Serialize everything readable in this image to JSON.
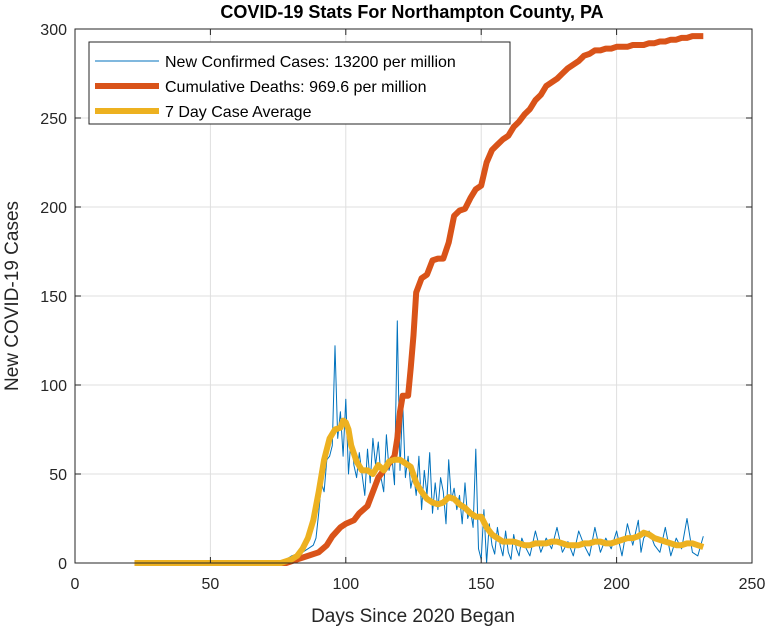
{
  "chart_data": {
    "type": "line",
    "title": "COVID-19 Stats For Northampton County, PA",
    "xlabel": "Days Since 2020 Began",
    "ylabel": "New COVID-19 Cases",
    "xlim": [
      0,
      250
    ],
    "ylim": [
      0,
      300
    ],
    "xticks": [
      0,
      50,
      100,
      150,
      200,
      250
    ],
    "yticks": [
      0,
      50,
      100,
      150,
      200,
      250,
      300
    ],
    "grid": true,
    "legend_position": "top-left",
    "series": [
      {
        "name": "New Confirmed Cases: 13200 per million",
        "color": "#0072BD",
        "line_width": "thin",
        "x": [
          22,
          30,
          40,
          50,
          60,
          70,
          76,
          78,
          80,
          82,
          84,
          86,
          88,
          89,
          90,
          91,
          92,
          93,
          94,
          95,
          96,
          97,
          98,
          99,
          100,
          101,
          102,
          103,
          104,
          105,
          106,
          107,
          108,
          109,
          110,
          111,
          112,
          113,
          114,
          115,
          116,
          117,
          118,
          119,
          120,
          121,
          122,
          123,
          124,
          125,
          126,
          127,
          128,
          129,
          130,
          131,
          132,
          133,
          134,
          135,
          136,
          137,
          138,
          139,
          140,
          141,
          142,
          143,
          144,
          145,
          146,
          147,
          148,
          149,
          150,
          151,
          152,
          153,
          154,
          155,
          156,
          157,
          158,
          159,
          160,
          161,
          162,
          163,
          164,
          165,
          166,
          168,
          170,
          172,
          174,
          176,
          178,
          180,
          182,
          184,
          186,
          188,
          190,
          192,
          194,
          196,
          198,
          200,
          202,
          204,
          206,
          208,
          209,
          210,
          212,
          214,
          216,
          218,
          220,
          222,
          224,
          226,
          228,
          230,
          232
        ],
        "values": [
          0,
          0,
          0,
          0,
          0,
          0,
          0,
          2,
          4,
          5,
          6,
          8,
          10,
          14,
          28,
          45,
          40,
          58,
          60,
          66,
          122,
          70,
          85,
          60,
          92,
          50,
          72,
          55,
          48,
          62,
          50,
          38,
          64,
          45,
          70,
          55,
          68,
          48,
          40,
          72,
          52,
          60,
          44,
          136,
          52,
          90,
          48,
          60,
          42,
          50,
          38,
          60,
          30,
          52,
          38,
          62,
          28,
          45,
          30,
          48,
          40,
          22,
          58,
          35,
          42,
          30,
          38,
          22,
          45,
          25,
          30,
          20,
          64,
          8,
          2,
          30,
          0,
          22,
          10,
          5,
          20,
          10,
          4,
          18,
          6,
          2,
          16,
          8,
          4,
          14,
          10,
          4,
          18,
          6,
          14,
          8,
          20,
          6,
          12,
          4,
          18,
          10,
          4,
          20,
          6,
          14,
          8,
          18,
          4,
          22,
          10,
          24,
          6,
          14,
          18,
          10,
          6,
          20,
          4,
          14,
          8,
          25,
          6,
          4,
          15
        ]
      },
      {
        "name": "Cumulative Deaths: 969.6 per million",
        "color": "#D95319",
        "line_width": "thick",
        "x": [
          22,
          40,
          60,
          78,
          82,
          86,
          90,
          93,
          95,
          98,
          100,
          103,
          105,
          108,
          110,
          112,
          114,
          116,
          118,
          119,
          120,
          121,
          122,
          123,
          124,
          125,
          126,
          127,
          128,
          130,
          132,
          134,
          136,
          138,
          140,
          142,
          144,
          146,
          148,
          150,
          152,
          154,
          156,
          158,
          160,
          162,
          164,
          166,
          168,
          170,
          172,
          174,
          176,
          178,
          180,
          182,
          184,
          186,
          188,
          190,
          192,
          194,
          196,
          198,
          200,
          202,
          204,
          206,
          208,
          210,
          212,
          214,
          216,
          218,
          220,
          222,
          224,
          226,
          228,
          230,
          232
        ],
        "values": [
          0,
          0,
          0,
          0,
          2,
          4,
          6,
          10,
          15,
          20,
          22,
          24,
          28,
          32,
          40,
          48,
          52,
          56,
          60,
          70,
          85,
          94,
          94,
          94,
          110,
          128,
          152,
          156,
          160,
          162,
          170,
          171,
          171,
          180,
          195,
          198,
          199,
          205,
          210,
          212,
          225,
          232,
          235,
          238,
          240,
          245,
          248,
          252,
          255,
          260,
          263,
          268,
          270,
          272,
          275,
          278,
          280,
          282,
          285,
          286,
          288,
          288,
          289,
          289,
          290,
          290,
          290,
          291,
          291,
          291,
          292,
          292,
          293,
          293,
          294,
          294,
          295,
          295,
          296,
          296,
          296
        ]
      },
      {
        "name": "7 Day Case Average",
        "color": "#EDB120",
        "line_width": "thick",
        "x": [
          22,
          40,
          60,
          76,
          78,
          80,
          82,
          84,
          86,
          88,
          90,
          92,
          94,
          96,
          98,
          99,
          100,
          101,
          102,
          104,
          106,
          108,
          110,
          112,
          114,
          116,
          118,
          120,
          122,
          124,
          126,
          128,
          130,
          132,
          134,
          136,
          138,
          140,
          142,
          144,
          146,
          148,
          150,
          152,
          154,
          156,
          158,
          160,
          162,
          164,
          166,
          168,
          170,
          172,
          174,
          176,
          178,
          180,
          182,
          184,
          186,
          188,
          190,
          192,
          194,
          196,
          198,
          200,
          202,
          204,
          206,
          208,
          210,
          212,
          214,
          216,
          218,
          220,
          222,
          224,
          226,
          228,
          230,
          232
        ],
        "values": [
          0,
          0,
          0,
          0,
          1,
          2,
          4,
          8,
          14,
          24,
          40,
          58,
          70,
          75,
          76,
          80,
          79,
          75,
          66,
          57,
          52,
          52,
          50,
          55,
          52,
          57,
          58,
          58,
          56,
          54,
          45,
          40,
          36,
          34,
          33,
          34,
          37,
          36,
          33,
          31,
          28,
          26,
          26,
          20,
          16,
          14,
          12,
          12,
          12,
          11,
          10,
          10,
          11,
          11,
          11,
          12,
          12,
          11,
          10,
          10,
          10,
          11,
          11,
          12,
          12,
          11,
          11,
          12,
          13,
          14,
          14,
          15,
          17,
          16,
          14,
          13,
          12,
          11,
          10,
          10,
          11,
          11,
          10,
          9
        ]
      }
    ]
  }
}
